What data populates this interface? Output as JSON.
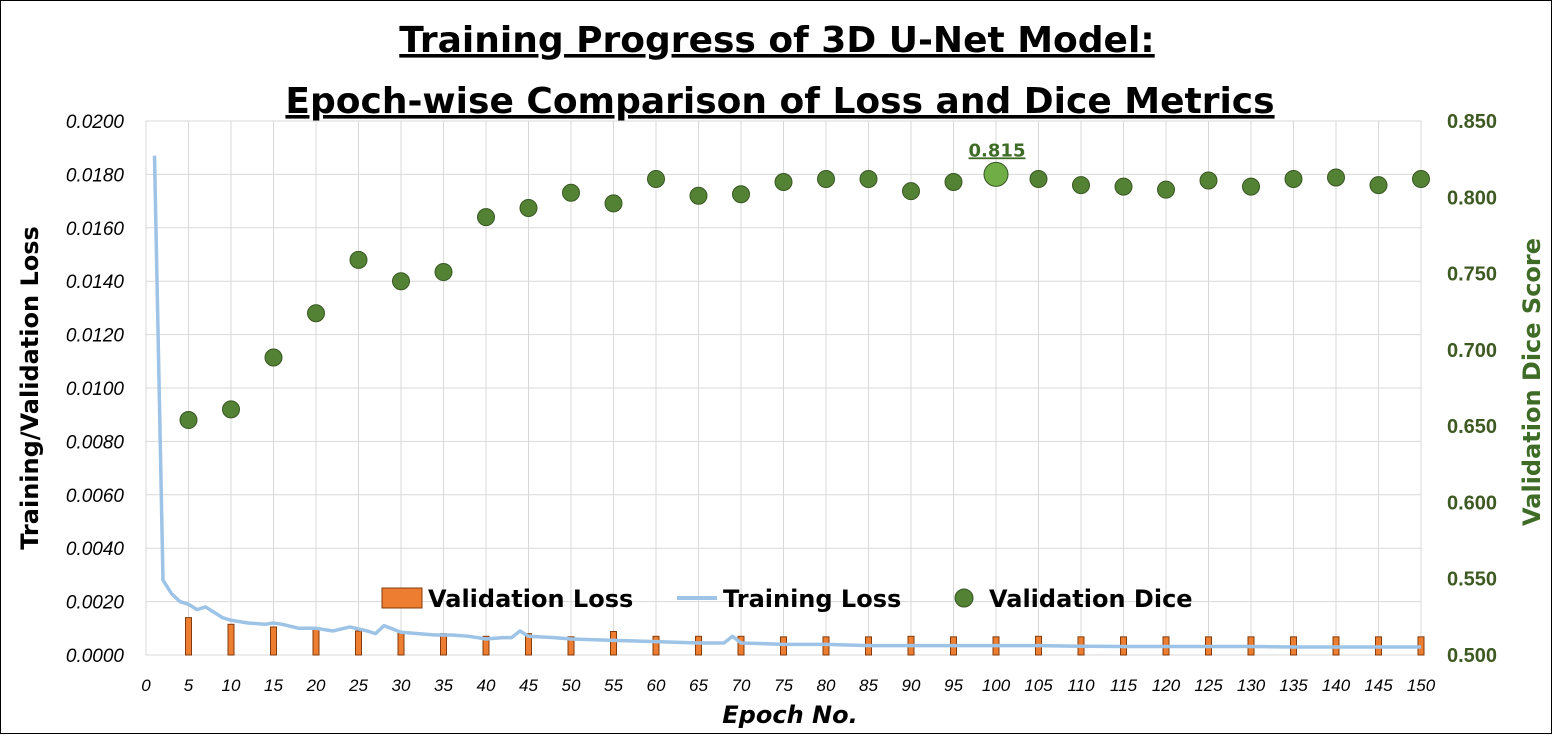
{
  "chart_data": {
    "type": "bar+line+scatter",
    "title_line1": "Training Progress of 3D U-Net Model:",
    "title_line2": "Epoch-wise Comparison of Loss and Dice Metrics",
    "xlabel": "Epoch No.",
    "ylabel_left": "Training/Validation Loss",
    "ylabel_right": "Validation Dice Score",
    "xlim": [
      0,
      150
    ],
    "ylim_left": [
      0,
      0.02
    ],
    "ylim_right": [
      0.5,
      0.85
    ],
    "x_ticks": [
      "0",
      "5",
      "10",
      "15",
      "20",
      "25",
      "30",
      "35",
      "40",
      "45",
      "50",
      "55",
      "60",
      "65",
      "70",
      "75",
      "80",
      "85",
      "90",
      "95",
      "100",
      "105",
      "110",
      "115",
      "120",
      "125",
      "130",
      "135",
      "140",
      "145",
      "150"
    ],
    "y_ticks_left": [
      "0.0000",
      "0.0020",
      "0.0040",
      "0.0060",
      "0.0080",
      "0.0100",
      "0.0120",
      "0.0140",
      "0.0160",
      "0.0180",
      "0.0200"
    ],
    "y_ticks_right": [
      "0.500",
      "0.550",
      "0.600",
      "0.650",
      "0.700",
      "0.750",
      "0.800",
      "0.850"
    ],
    "grid": true,
    "legend": {
      "position": "bottom-center",
      "entries": [
        "Validation Loss",
        "Training Loss",
        "Validation Dice"
      ]
    },
    "annotation": {
      "epoch": 100,
      "label": "0.815"
    },
    "colors": {
      "validation_loss": "#ed7d31",
      "validation_loss_edge": "#843c0c",
      "training_loss": "#9dc3e6",
      "validation_dice": "#548235",
      "validation_dice_edge": "#385723",
      "best_dice": "#70ad47",
      "grid": "#d9d9d9"
    },
    "series": [
      {
        "name": "Validation Loss",
        "kind": "bar",
        "x": [
          5,
          10,
          15,
          20,
          25,
          30,
          35,
          40,
          45,
          50,
          55,
          60,
          65,
          70,
          75,
          80,
          85,
          90,
          95,
          100,
          105,
          110,
          115,
          120,
          125,
          130,
          135,
          140,
          145,
          150
        ],
        "values": [
          0.0014,
          0.00115,
          0.00105,
          0.001,
          0.0009,
          0.00085,
          0.0008,
          0.0007,
          0.0008,
          0.00068,
          0.00088,
          0.0007,
          0.0007,
          0.0007,
          0.00068,
          0.00068,
          0.00068,
          0.0007,
          0.00068,
          0.00068,
          0.0007,
          0.00068,
          0.00068,
          0.00068,
          0.00068,
          0.00068,
          0.00068,
          0.00068,
          0.00068,
          0.00068
        ]
      },
      {
        "name": "Training Loss",
        "kind": "line",
        "x": [
          1,
          2,
          3,
          4,
          5,
          6,
          7,
          8,
          9,
          10,
          12,
          14,
          15,
          16,
          18,
          20,
          22,
          24,
          26,
          27,
          28,
          30,
          32,
          34,
          36,
          38,
          40,
          42,
          43,
          44,
          45,
          48,
          50,
          55,
          60,
          65,
          68,
          69,
          70,
          75,
          80,
          85,
          90,
          95,
          100,
          105,
          110,
          115,
          120,
          125,
          130,
          135,
          140,
          145,
          150
        ],
        "values": [
          0.0187,
          0.0028,
          0.0023,
          0.002,
          0.0019,
          0.0017,
          0.0018,
          0.0016,
          0.0014,
          0.0013,
          0.0012,
          0.00115,
          0.0012,
          0.00115,
          0.001,
          0.001,
          0.0009,
          0.00105,
          0.0009,
          0.0008,
          0.0011,
          0.00085,
          0.0008,
          0.00075,
          0.00075,
          0.0007,
          0.0006,
          0.00065,
          0.00065,
          0.0009,
          0.0007,
          0.00065,
          0.0006,
          0.00055,
          0.0005,
          0.00045,
          0.00045,
          0.0007,
          0.00045,
          0.0004,
          0.0004,
          0.00035,
          0.00035,
          0.00035,
          0.00035,
          0.00035,
          0.00033,
          0.00032,
          0.00032,
          0.00032,
          0.00032,
          0.0003,
          0.0003,
          0.0003,
          0.0003
        ]
      },
      {
        "name": "Validation Dice",
        "kind": "scatter",
        "x": [
          5,
          10,
          15,
          20,
          25,
          30,
          35,
          40,
          45,
          50,
          55,
          60,
          65,
          70,
          75,
          80,
          85,
          90,
          95,
          100,
          105,
          110,
          115,
          120,
          125,
          130,
          135,
          140,
          145,
          150
        ],
        "values": [
          0.654,
          0.661,
          0.695,
          0.724,
          0.759,
          0.745,
          0.751,
          0.787,
          0.793,
          0.803,
          0.796,
          0.812,
          0.801,
          0.802,
          0.81,
          0.812,
          0.812,
          0.804,
          0.81,
          0.815,
          0.812,
          0.808,
          0.807,
          0.805,
          0.811,
          0.807,
          0.812,
          0.813,
          0.808,
          0.812
        ]
      }
    ]
  }
}
